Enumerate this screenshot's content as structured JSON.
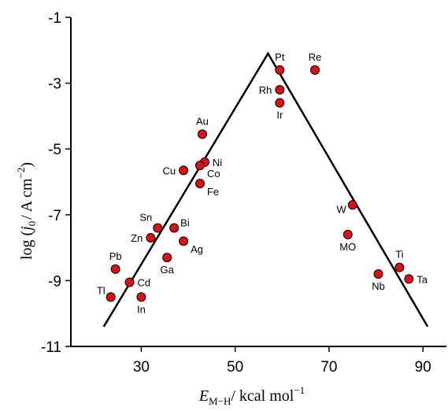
{
  "chart_data": {
    "type": "scatter",
    "title": "",
    "xlabel": "E_M−H / kcal mol⁻¹",
    "ylabel": "log (j₀ / A cm⁻²)",
    "xlabel_parts": {
      "var": "E",
      "sub": "M−H",
      "unit": "/ kcal mol",
      "sup": "−1"
    },
    "ylabel_parts": {
      "pre": "log (",
      "var": "j",
      "sub": "0",
      "unit": "/ A cm",
      "sup": "−2",
      "post": ")"
    },
    "xlim": [
      15,
      95
    ],
    "ylim": [
      -11,
      -1
    ],
    "x_ticks": [
      30,
      50,
      70,
      90
    ],
    "y_ticks": [
      -1,
      -3,
      -5,
      -7,
      -9,
      -11
    ],
    "grid": false,
    "legend": "none",
    "marker_color": "#e01010",
    "line_color": "#000000",
    "points": [
      {
        "label": "Pt",
        "x": 59.5,
        "y": -2.6,
        "anchor": "above"
      },
      {
        "label": "Re",
        "x": 67.0,
        "y": -2.6,
        "anchor": "above"
      },
      {
        "label": "Rh",
        "x": 59.5,
        "y": -3.2,
        "anchor": "left"
      },
      {
        "label": "Ir",
        "x": 59.5,
        "y": -3.6,
        "anchor": "below"
      },
      {
        "label": "Au",
        "x": 43.0,
        "y": -4.55,
        "anchor": "above"
      },
      {
        "label": "Ni",
        "x": 43.5,
        "y": -5.4,
        "anchor": "right"
      },
      {
        "label": "Cu",
        "x": 39.0,
        "y": -5.65,
        "anchor": "left"
      },
      {
        "label": "Co",
        "x": 42.5,
        "y": -5.5,
        "anchor": "below-right"
      },
      {
        "label": "Fe",
        "x": 42.5,
        "y": -6.05,
        "anchor": "below-right"
      },
      {
        "label": "W",
        "x": 75.0,
        "y": -6.7,
        "anchor": "left-below"
      },
      {
        "label": "Sn",
        "x": 33.5,
        "y": -7.4,
        "anchor": "above-left"
      },
      {
        "label": "Bi",
        "x": 37.0,
        "y": -7.4,
        "anchor": "right-above"
      },
      {
        "label": "Zn",
        "x": 32.0,
        "y": -7.7,
        "anchor": "left"
      },
      {
        "label": "Ag",
        "x": 39.0,
        "y": -7.8,
        "anchor": "below-right"
      },
      {
        "label": "MO",
        "x": 74.0,
        "y": -7.6,
        "anchor": "below"
      },
      {
        "label": "Ga",
        "x": 35.5,
        "y": -8.3,
        "anchor": "below"
      },
      {
        "label": "Pb",
        "x": 24.5,
        "y": -8.65,
        "anchor": "above"
      },
      {
        "label": "Ti",
        "x": 85.0,
        "y": -8.6,
        "anchor": "above"
      },
      {
        "label": "Nb",
        "x": 80.5,
        "y": -8.8,
        "anchor": "below"
      },
      {
        "label": "Ta",
        "x": 87.0,
        "y": -8.95,
        "anchor": "right"
      },
      {
        "label": "Cd",
        "x": 27.5,
        "y": -9.05,
        "anchor": "right"
      },
      {
        "label": "Tl",
        "x": 23.5,
        "y": -9.5,
        "anchor": "left-above"
      },
      {
        "label": "In",
        "x": 30.0,
        "y": -9.5,
        "anchor": "below"
      }
    ],
    "volcano_line": [
      {
        "x": 22.0,
        "y": -10.4
      },
      {
        "x": 57.0,
        "y": -2.1
      },
      {
        "x": 91.0,
        "y": -10.4
      }
    ]
  }
}
